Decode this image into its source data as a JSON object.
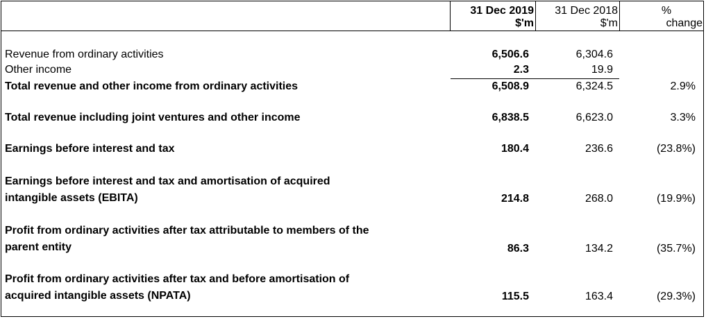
{
  "header": {
    "col1_line1": "31 Dec 2019",
    "col1_line2": "$'m",
    "col2_line1": "31 Dec 2018",
    "col2_line2": "$'m",
    "col3_line1": "%",
    "col3_line2": "change"
  },
  "rows": [
    {
      "label": "Revenue from ordinary activities",
      "v2019": "6,506.6",
      "v2018": "6,304.6",
      "change": ""
    },
    {
      "label": "Other income",
      "v2019": "2.3",
      "v2018": "19.9",
      "change": ""
    },
    {
      "label": "Total revenue and other income from ordinary activities",
      "v2019": "6,508.9",
      "v2018": "6,324.5",
      "change": "2.9%"
    },
    {
      "label": "Total revenue including joint ventures and other income",
      "v2019": "6,838.5",
      "v2018": "6,623.0",
      "change": "3.3%"
    },
    {
      "label": "Earnings before interest and tax",
      "v2019": "180.4",
      "v2018": "236.6",
      "change": "(23.8%)"
    },
    {
      "label_line1": "Earnings before interest and tax and amortisation of acquired",
      "label_line2": "intangible assets (EBITA)",
      "v2019": "214.8",
      "v2018": "268.0",
      "change": "(19.9%)"
    },
    {
      "label_line1": "Profit from ordinary activities after tax attributable to members of the",
      "label_line2": "parent entity",
      "v2019": "86.3",
      "v2018": "134.2",
      "change": "(35.7%)"
    },
    {
      "label_line1": "Profit from ordinary activities after tax and before amortisation of",
      "label_line2": "acquired intangible assets (NPATA)",
      "v2019": "115.5",
      "v2018": "163.4",
      "change": "(29.3%)"
    }
  ]
}
